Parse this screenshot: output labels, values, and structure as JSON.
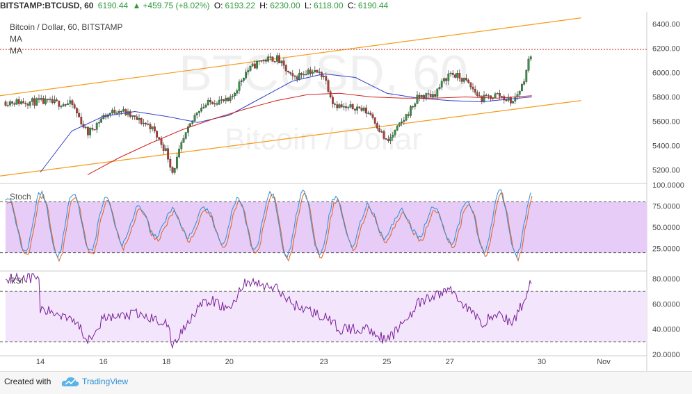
{
  "header": {
    "symbol": "BITSTAMP:BTCUSD, 60",
    "last": "6190.44",
    "change": "+459.75 (+8.02%)",
    "o_label": "O:",
    "o_value": "6193.22",
    "h_label": "H:",
    "h_value": "6230.00",
    "l_label": "L:",
    "l_value": "6118.00",
    "c_label": "C:",
    "c_value": "6190.44"
  },
  "legend": {
    "title": "Bitcoin / Dollar, 60, BITSTAMP",
    "ma1": "MA",
    "ma2": "MA"
  },
  "watermark": {
    "big": "BTCUSD, 60",
    "small": "Bitcoin / Dollar"
  },
  "footer": {
    "created_with": "Created with",
    "brand": "TradingView"
  },
  "colors": {
    "up": "#2e9a3e",
    "down": "#c0392b",
    "ma_blue": "#3040c8",
    "ma_red": "#d02020",
    "channel": "#f59a1b",
    "stoch_k": "#2d8fd6",
    "stoch_d": "#e0601a",
    "stoch_bg": "#e6ccf7",
    "rsi_line": "#7a1f9a",
    "rsi_bg": "#f3e5fb"
  },
  "chart_data": [
    {
      "type": "candlestick",
      "title": "Bitcoin / Dollar, 60, BITSTAMP",
      "y_ticks": [
        "6400.00",
        "6200.00",
        "6000.00",
        "5800.00",
        "5600.00",
        "5400.00",
        "5200.00"
      ],
      "ylim": [
        5100,
        6500
      ],
      "x_ticks": [
        "14",
        "16",
        "18",
        "20",
        "23",
        "25",
        "27",
        "30",
        "Nov"
      ],
      "price_path": [
        [
          "14",
          5760
        ],
        [
          "15",
          5740
        ],
        [
          "15.5",
          5500
        ],
        [
          "16",
          5640
        ],
        [
          "16.5",
          5700
        ],
        [
          "17",
          5620
        ],
        [
          "17.5",
          5560
        ],
        [
          "18",
          5350
        ],
        [
          "18.2",
          5180
        ],
        [
          "18.5",
          5420
        ],
        [
          "19",
          5700
        ],
        [
          "19.5",
          5770
        ],
        [
          "20",
          5760
        ],
        [
          "20.5",
          6000
        ],
        [
          "21",
          6100
        ],
        [
          "21.5",
          6120
        ],
        [
          "22",
          5950
        ],
        [
          "22.5",
          6020
        ],
        [
          "23",
          5980
        ],
        [
          "23.3",
          5750
        ],
        [
          "23.7",
          5700
        ],
        [
          "24",
          5720
        ],
        [
          "24.5",
          5660
        ],
        [
          "25",
          5420
        ],
        [
          "25.5",
          5600
        ],
        [
          "26",
          5800
        ],
        [
          "26.5",
          5820
        ],
        [
          "27",
          6000
        ],
        [
          "27.5",
          5930
        ],
        [
          "28",
          5780
        ],
        [
          "28.5",
          5820
        ],
        [
          "29",
          5760
        ],
        [
          "29.3",
          5900
        ],
        [
          "29.6",
          6190
        ]
      ],
      "last_price": 6190.44,
      "moving_averages": [
        {
          "name": "MA",
          "path": [
            [
              "14",
              5180
            ],
            [
              "15",
              5520
            ],
            [
              "16",
              5640
            ],
            [
              "17",
              5680
            ],
            [
              "18",
              5640
            ],
            [
              "19",
              5590
            ],
            [
              "20",
              5650
            ],
            [
              "21",
              5790
            ],
            [
              "22",
              5930
            ],
            [
              "23",
              5990
            ],
            [
              "24",
              5960
            ],
            [
              "25",
              5830
            ],
            [
              "26",
              5790
            ],
            [
              "27",
              5770
            ],
            [
              "28",
              5760
            ],
            [
              "29.6",
              5800
            ]
          ]
        },
        {
          "name": "MA",
          "path": [
            [
              "15.5",
              5160
            ],
            [
              "16.5",
              5300
            ],
            [
              "17.5",
              5420
            ],
            [
              "18.5",
              5530
            ],
            [
              "19.5",
              5620
            ],
            [
              "20.5",
              5700
            ],
            [
              "21.5",
              5770
            ],
            [
              "22.5",
              5820
            ],
            [
              "23.5",
              5830
            ],
            [
              "24.5",
              5800
            ],
            [
              "25.5",
              5790
            ],
            [
              "26.5",
              5790
            ],
            [
              "27.5",
              5800
            ],
            [
              "28.5",
              5790
            ],
            [
              "29.6",
              5810
            ]
          ]
        }
      ],
      "channel": {
        "upper": [
          [
            "13.5",
            5810
          ],
          [
            "30.5",
            6450
          ]
        ],
        "lower": [
          [
            "13.5",
            5150
          ],
          [
            "30.5",
            5770
          ]
        ]
      }
    },
    {
      "type": "line",
      "title": "Stoch",
      "y_ticks": [
        "100.0000",
        "75.0000",
        "50.0000",
        "25.0000"
      ],
      "ylim": [
        0,
        100
      ],
      "bands": [
        20,
        80
      ],
      "range": "oscillates between ~15 and ~95, ending near 85"
    },
    {
      "type": "line",
      "title": "RSI",
      "y_ticks": [
        "80.0000",
        "60.0000",
        "40.0000",
        "20.0000"
      ],
      "ylim": [
        20,
        85
      ],
      "bands": [
        30,
        70
      ],
      "path": [
        [
          "13.5",
          82
        ],
        [
          "14",
          55
        ],
        [
          "15",
          50
        ],
        [
          "15.5",
          32
        ],
        [
          "16",
          48
        ],
        [
          "17",
          52
        ],
        [
          "18",
          45
        ],
        [
          "18.2",
          27
        ],
        [
          "19",
          58
        ],
        [
          "19.5",
          62
        ],
        [
          "20",
          55
        ],
        [
          "20.5",
          78
        ],
        [
          "21.5",
          72
        ],
        [
          "22",
          60
        ],
        [
          "23",
          50
        ],
        [
          "23.5",
          40
        ],
        [
          "24.5",
          40
        ],
        [
          "25",
          30
        ],
        [
          "25.5",
          45
        ],
        [
          "26",
          60
        ],
        [
          "27",
          72
        ],
        [
          "27.5",
          58
        ],
        [
          "28",
          45
        ],
        [
          "28.5",
          52
        ],
        [
          "29",
          45
        ],
        [
          "29.3",
          60
        ],
        [
          "29.6",
          81
        ]
      ]
    }
  ]
}
